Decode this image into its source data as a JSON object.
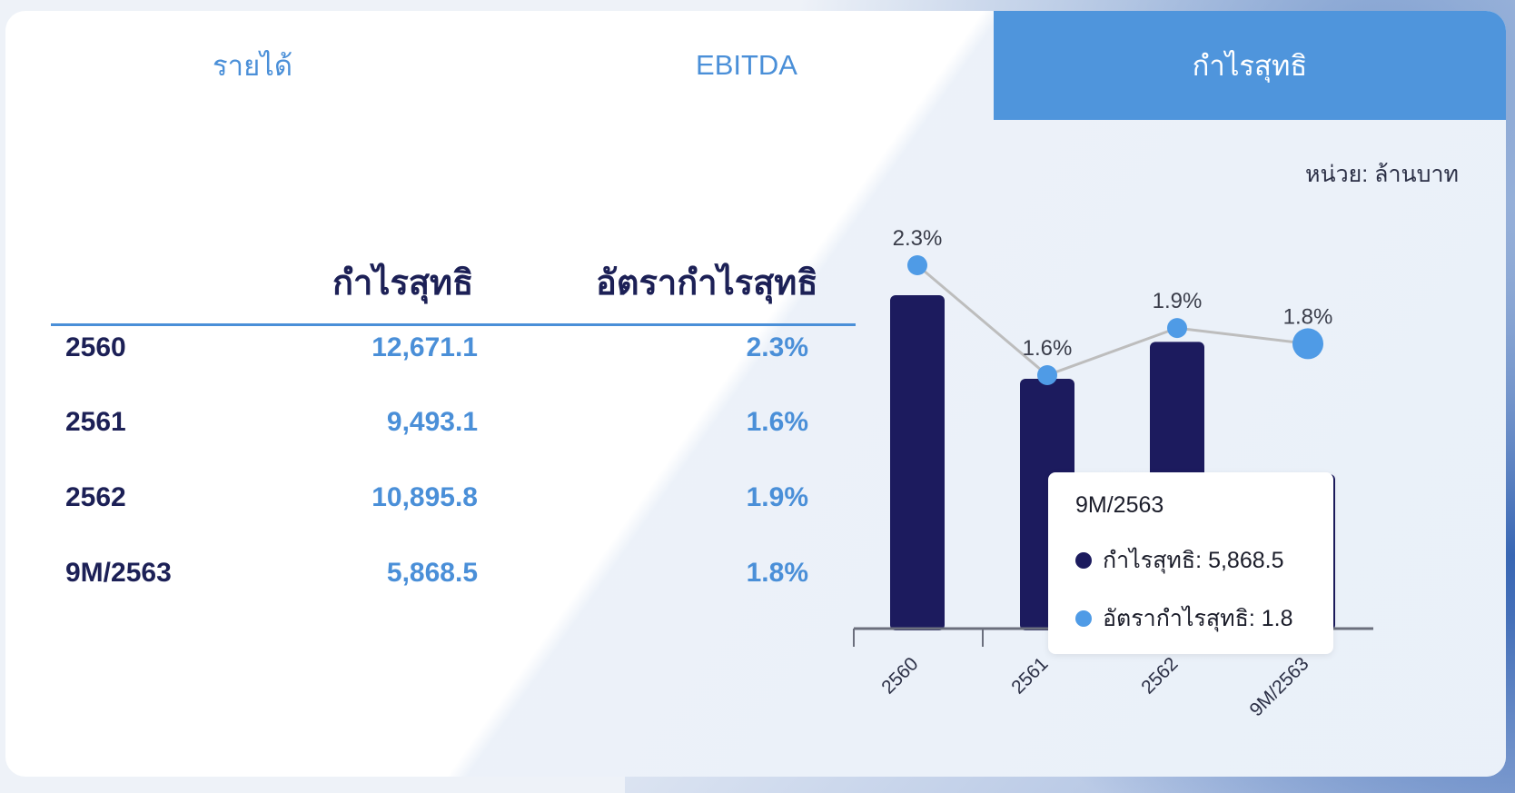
{
  "tabs": [
    {
      "label": "รายได้",
      "active": false
    },
    {
      "label": "EBITDA",
      "active": false
    },
    {
      "label": "กำไรสุทธิ",
      "active": true
    }
  ],
  "unit_label": "หน่วย: ล้านบาท",
  "table": {
    "headers": [
      "กำไรสุทธิ",
      "อัตรากำไรสุทธิ"
    ],
    "rows": [
      {
        "year": "2560",
        "net_profit": "12,671.1",
        "margin": "2.3%"
      },
      {
        "year": "2561",
        "net_profit": "9,493.1",
        "margin": "1.6%"
      },
      {
        "year": "2562",
        "net_profit": "10,895.8",
        "margin": "1.9%"
      },
      {
        "year": "9M/2563",
        "net_profit": "5,868.5",
        "margin": "1.8%"
      }
    ]
  },
  "tooltip": {
    "title": "9M/2563",
    "net_profit_line": "กำไรสุทธิ: 5,868.5",
    "margin_line": "อัตรากำไรสุทธิ: 1.8"
  },
  "colors": {
    "bar": "#1c1b5e",
    "line": "#bdbdbd",
    "point": "#4f9be6",
    "accent": "#4f95dc",
    "text_dark": "#1c2056"
  },
  "chart_data": {
    "type": "bar",
    "categories": [
      "2560",
      "2561",
      "2562",
      "9M/2563"
    ],
    "series": [
      {
        "type": "bar",
        "values": [
          12671.1,
          9493.1,
          10895.8,
          5868.5
        ]
      },
      {
        "type": "line",
        "values": [
          2.3,
          1.6,
          1.9,
          1.8
        ],
        "labels": [
          "2.3%",
          "1.6%",
          "1.9%",
          "1.8%"
        ]
      }
    ],
    "highlighted_category": "9M/2563",
    "grid": false
  }
}
